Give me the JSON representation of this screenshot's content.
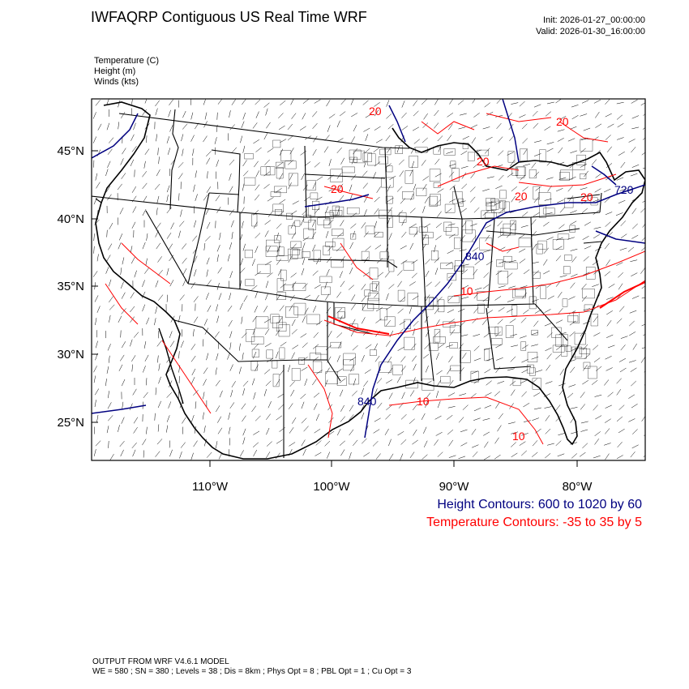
{
  "title": "IWFAQRP Contiguous US Real Time WRF",
  "init": "Init: 2026-01-27_00:00:00",
  "valid": "Valid: 2026-01-30_16:00:00",
  "fields": {
    "temperature": "Temperature   (C)",
    "height": "Height   (m)",
    "winds": "Winds   (kts)"
  },
  "map": {
    "projection": "lat-lon",
    "lat_range_deg": [
      22,
      49
    ],
    "lon_range_deg": [
      -119,
      -74
    ],
    "lat_labels": [
      "45°N",
      "40°N",
      "35°N",
      "30°N",
      "25°N"
    ],
    "lon_labels": [
      "110°W",
      "100°W",
      "90°W",
      "80°W"
    ],
    "temperature_labels": [
      "20",
      "20",
      "20",
      "20",
      "20",
      "20",
      "10",
      "10",
      "10"
    ],
    "height_labels": [
      "840",
      "840",
      "720"
    ],
    "colors": {
      "height": "#000080",
      "temperature": "#ff0000",
      "boundaries": "#000000",
      "wind_barbs": "#000000"
    }
  },
  "legend": {
    "height": "Height Contours: 600 to 1020 by 60",
    "temperature": "Temperature Contours: -35 to 35 by 5"
  },
  "footer": {
    "line1": "OUTPUT FROM WRF V4.6.1 MODEL",
    "line2": "WE = 580 ; SN = 380 ; Levels = 38 ; Dis = 8km ; Phys Opt = 8 ; PBL Opt = 1 ; Cu Opt = 3"
  }
}
